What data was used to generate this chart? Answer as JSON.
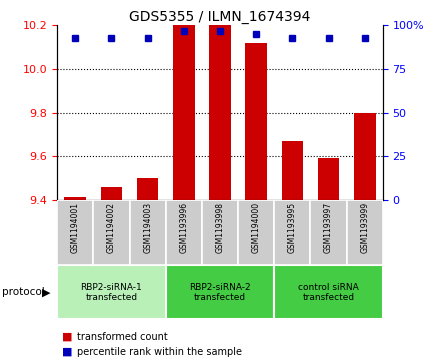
{
  "title": "GDS5355 / ILMN_1674394",
  "samples": [
    "GSM1194001",
    "GSM1194002",
    "GSM1194003",
    "GSM1193996",
    "GSM1193998",
    "GSM1194000",
    "GSM1193995",
    "GSM1193997",
    "GSM1193999"
  ],
  "red_values": [
    9.41,
    9.46,
    9.5,
    10.2,
    10.2,
    10.12,
    9.67,
    9.59,
    9.8
  ],
  "blue_values": [
    93,
    93,
    93,
    97,
    97,
    95,
    93,
    93,
    93
  ],
  "ylim_left": [
    9.4,
    10.2
  ],
  "ylim_right": [
    0,
    100
  ],
  "yticks_left": [
    9.4,
    9.6,
    9.8,
    10.0,
    10.2
  ],
  "yticks_right": [
    0,
    25,
    50,
    75,
    100
  ],
  "group_labels": [
    "RBP2-siRNA-1\ntransfected",
    "RBP2-siRNA-2\ntransfected",
    "control siRNA\ntransfected"
  ],
  "group_ranges": [
    [
      0,
      3
    ],
    [
      3,
      6
    ],
    [
      6,
      9
    ]
  ],
  "group_colors": [
    "#b8f0b8",
    "#44cc44",
    "#44cc44"
  ],
  "protocol_label": "protocol",
  "bar_color": "#cc0000",
  "dot_color": "#0000bb",
  "sample_bg_color": "#cccccc",
  "bar_width": 0.6,
  "baseline": 9.4,
  "legend_red": "transformed count",
  "legend_blue": "percentile rank within the sample"
}
